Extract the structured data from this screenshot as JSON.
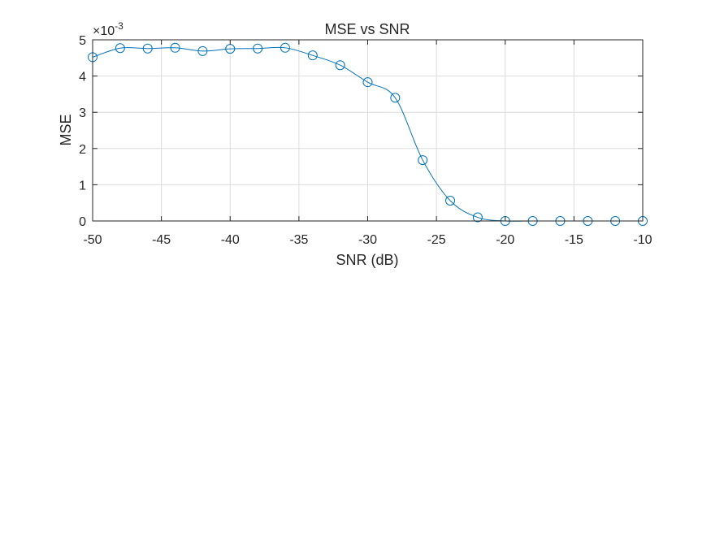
{
  "chart_data": {
    "type": "line",
    "title": "MSE vs SNR",
    "xlabel": "SNR (dB)",
    "ylabel": "MSE",
    "xlim": [
      -50,
      -10
    ],
    "ylim": [
      0,
      0.005
    ],
    "x_ticks": [
      -50,
      -45,
      -40,
      -35,
      -30,
      -25,
      -20,
      -15,
      -10
    ],
    "y_ticks": [
      0,
      1,
      2,
      3,
      4,
      5
    ],
    "y_exponent_base": "×10",
    "y_exponent_power": "-3",
    "grid": true,
    "marker": "circle",
    "line_color": "#0072BD",
    "series": [
      {
        "x": [
          -50,
          -48,
          -46,
          -44,
          -42,
          -40,
          -38,
          -36,
          -34,
          -32,
          -30,
          -28,
          -26,
          -24,
          -22,
          -20,
          -18,
          -16,
          -14,
          -12,
          -10
        ],
        "values": [
          0.00452,
          0.00477,
          0.00476,
          0.00478,
          0.00469,
          0.00475,
          0.00476,
          0.00478,
          0.00457,
          0.0043,
          0.00383,
          0.0034,
          0.00168,
          0.00056,
          0.0001,
          0.0,
          0.0,
          0.0,
          0.0,
          0.0,
          0.0
        ]
      }
    ]
  }
}
